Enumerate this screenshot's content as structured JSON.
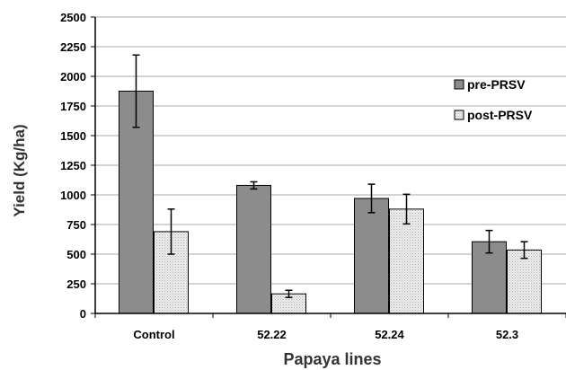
{
  "chart_data": {
    "type": "bar",
    "title": "",
    "xlabel": "Papaya lines",
    "ylabel": "Yield (Kg/ha)",
    "categories": [
      "Control",
      "52.22",
      "52.24",
      "52.3"
    ],
    "ylim": [
      0,
      2500
    ],
    "yticks": [
      0,
      250,
      500,
      750,
      1000,
      1250,
      1500,
      1750,
      2000,
      2250,
      2500
    ],
    "grid": true,
    "legend_position": "right",
    "series": [
      {
        "name": "pre-PRSV",
        "values": [
          1875,
          1080,
          970,
          605
        ],
        "error": [
          305,
          30,
          120,
          95
        ],
        "color": "#8c8c8c"
      },
      {
        "name": "post-PRSV",
        "values": [
          690,
          165,
          880,
          535
        ],
        "error": [
          190,
          30,
          125,
          70
        ],
        "color": "#e6e6e6"
      }
    ]
  }
}
